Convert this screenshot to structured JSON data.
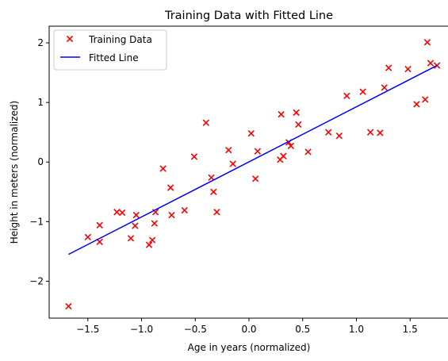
{
  "chart_data": {
    "type": "scatter",
    "title": "Training Data with Fitted Line",
    "xlabel": "Age in years (normalized)",
    "ylabel": "Height in meters (normalized)",
    "xlim": [
      -1.86,
      1.86
    ],
    "ylim": [
      -2.62,
      2.28
    ],
    "xticks": [
      -1.5,
      -1.0,
      -0.5,
      0.0,
      0.5,
      1.0,
      1.5
    ],
    "xtick_labels": [
      "−1.5",
      "−1.0",
      "−0.5",
      "0.0",
      "0.5",
      "1.0",
      "1.5"
    ],
    "yticks": [
      -2,
      -1,
      0,
      1,
      2
    ],
    "ytick_labels": [
      "−2",
      "−1",
      "0",
      "1",
      "2"
    ],
    "grid": false,
    "legend": {
      "placement": "upper-left"
    },
    "series": [
      {
        "name": "Training Data",
        "kind": "scatter",
        "marker": "x",
        "color": "#ff0000",
        "points": [
          [
            -1.68,
            -2.42
          ],
          [
            -1.5,
            -1.26
          ],
          [
            -1.39,
            -1.06
          ],
          [
            -1.39,
            -1.34
          ],
          [
            -1.23,
            -0.84
          ],
          [
            -1.18,
            -0.85
          ],
          [
            -1.1,
            -1.28
          ],
          [
            -1.06,
            -1.07
          ],
          [
            -1.05,
            -0.89
          ],
          [
            -0.93,
            -1.39
          ],
          [
            -0.9,
            -1.31
          ],
          [
            -0.88,
            -1.03
          ],
          [
            -0.87,
            -0.84
          ],
          [
            -0.8,
            -0.11
          ],
          [
            -0.73,
            -0.43
          ],
          [
            -0.72,
            -0.89
          ],
          [
            -0.6,
            -0.81
          ],
          [
            -0.51,
            0.09
          ],
          [
            -0.4,
            0.66
          ],
          [
            -0.35,
            -0.26
          ],
          [
            -0.33,
            -0.5
          ],
          [
            -0.3,
            -0.84
          ],
          [
            -0.19,
            0.2
          ],
          [
            -0.15,
            -0.03
          ],
          [
            0.02,
            0.48
          ],
          [
            0.06,
            -0.28
          ],
          [
            0.08,
            0.18
          ],
          [
            0.29,
            0.04
          ],
          [
            0.3,
            0.8
          ],
          [
            0.32,
            0.1
          ],
          [
            0.37,
            0.33
          ],
          [
            0.39,
            0.27
          ],
          [
            0.44,
            0.83
          ],
          [
            0.46,
            0.63
          ],
          [
            0.55,
            0.17
          ],
          [
            0.74,
            0.5
          ],
          [
            0.84,
            0.44
          ],
          [
            0.91,
            1.11
          ],
          [
            1.06,
            1.18
          ],
          [
            1.13,
            0.5
          ],
          [
            1.22,
            0.49
          ],
          [
            1.26,
            1.25
          ],
          [
            1.3,
            1.58
          ],
          [
            1.48,
            1.56
          ],
          [
            1.56,
            0.97
          ],
          [
            1.64,
            1.05
          ],
          [
            1.66,
            2.01
          ],
          [
            1.69,
            1.66
          ],
          [
            1.75,
            1.62
          ]
        ]
      },
      {
        "name": "Fitted Line",
        "kind": "line",
        "color": "#0000ff",
        "points": [
          [
            -1.68,
            -1.55
          ],
          [
            1.75,
            1.62
          ]
        ]
      }
    ]
  }
}
